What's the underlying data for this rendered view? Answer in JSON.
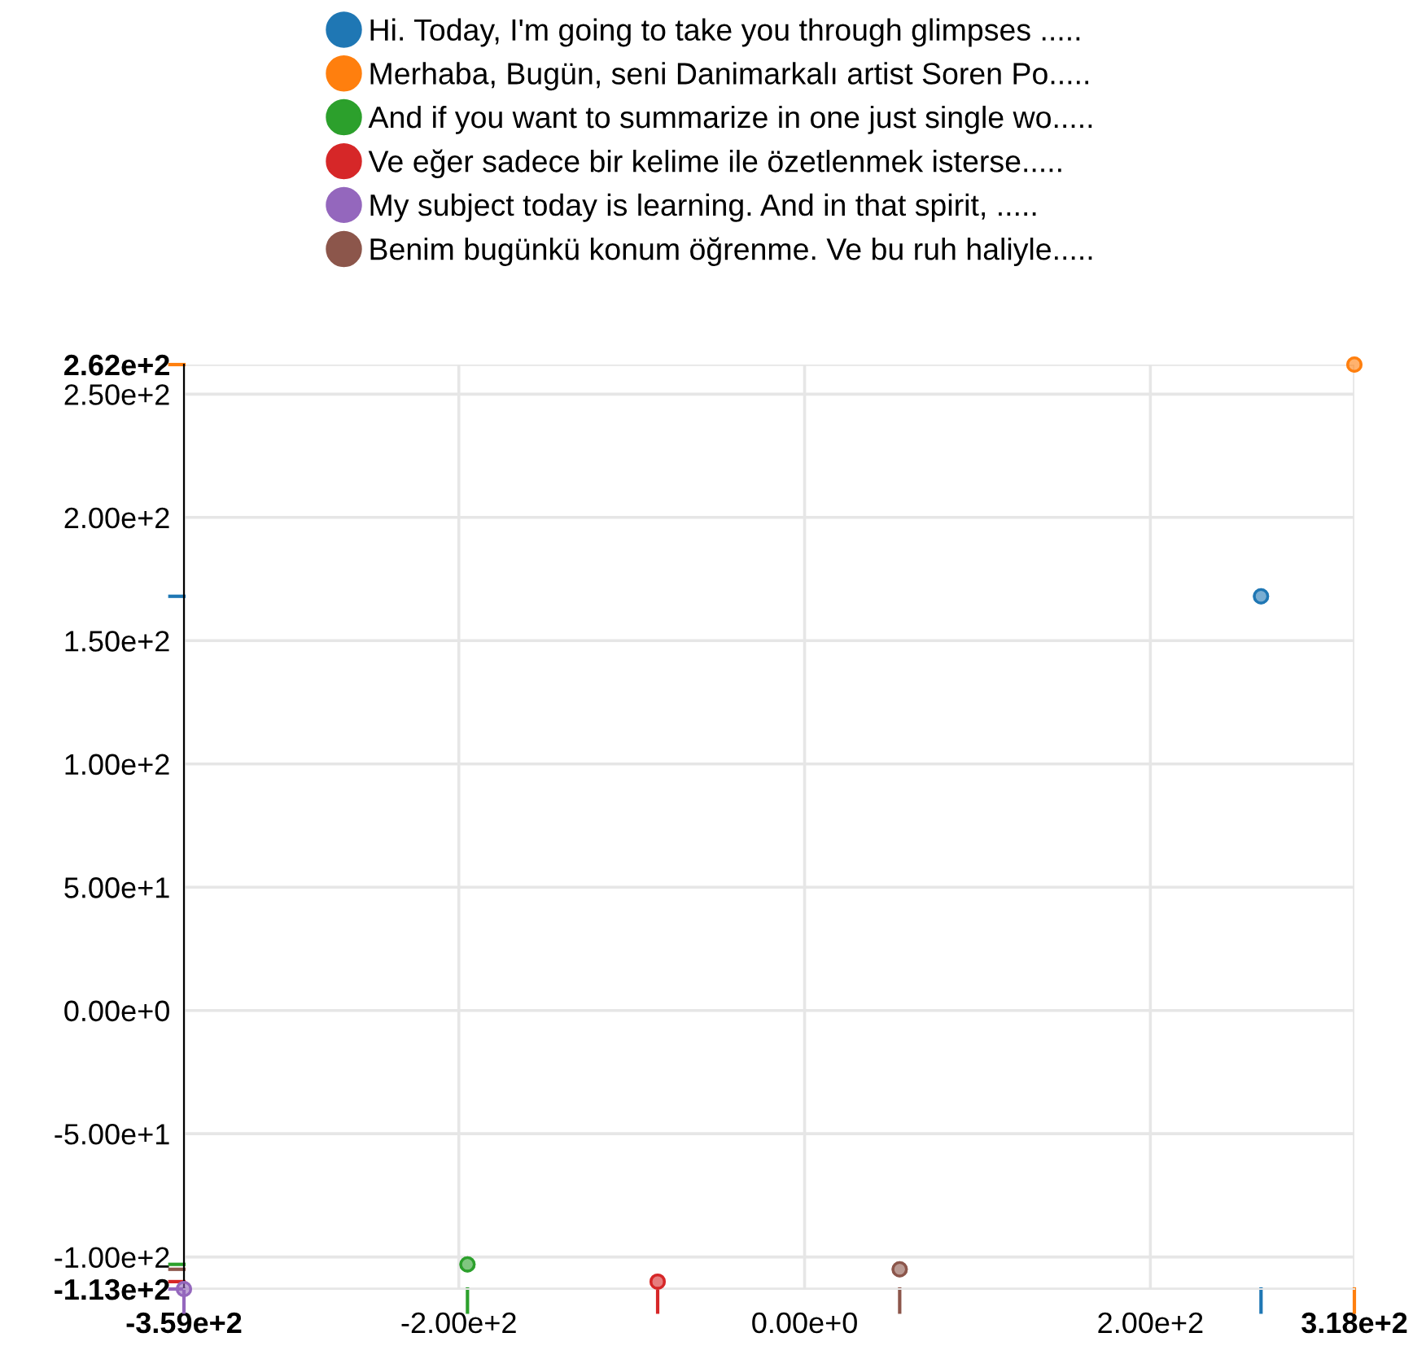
{
  "chart_data": {
    "type": "scatter",
    "marker": "circle",
    "grid": true,
    "legend": "top",
    "xlim": [
      -359,
      318
    ],
    "ylim": [
      -113,
      262
    ],
    "xticks": [
      {
        "value": -359,
        "label": "-3.59e+2"
      },
      {
        "value": -200,
        "label": "-2.00e+2"
      },
      {
        "value": 0,
        "label": "0.00e+0"
      },
      {
        "value": 200,
        "label": "2.00e+2"
      },
      {
        "value": 318,
        "label": "3.18e+2"
      }
    ],
    "yticks": [
      {
        "value": -113,
        "label": "-1.13e+2"
      },
      {
        "value": -100,
        "label": "-1.00e+2"
      },
      {
        "value": -50,
        "label": "-5.00e+1"
      },
      {
        "value": 0,
        "label": "0.00e+0"
      },
      {
        "value": 50,
        "label": "5.00e+1"
      },
      {
        "value": 100,
        "label": "1.00e+2"
      },
      {
        "value": 150,
        "label": "1.50e+2"
      },
      {
        "value": 200,
        "label": "2.00e+2"
      },
      {
        "value": 250,
        "label": "2.50e+2"
      },
      {
        "value": 262,
        "label": "2.62e+2"
      }
    ],
    "series": [
      {
        "name": "Hi. Today, I'm going to take you through glimpses .....",
        "color": "#1f77b4",
        "x": [
          264
        ],
        "values": [
          168
        ]
      },
      {
        "name": "Merhaba, Bugün, seni Danimarkalı artist Soren Po.....",
        "color": "#ff7f0e",
        "x": [
          318
        ],
        "values": [
          262
        ]
      },
      {
        "name": "And if you want to summarize in one just single wo.....",
        "color": "#2ca02c",
        "x": [
          -195
        ],
        "values": [
          -103
        ]
      },
      {
        "name": "Ve eğer sadece bir kelime ile özetlenmek isterse.....",
        "color": "#d62728",
        "x": [
          -85
        ],
        "values": [
          -110
        ]
      },
      {
        "name": "My subject today is learning. And in that spirit, .....",
        "color": "#9467bd",
        "x": [
          -359
        ],
        "values": [
          -113
        ]
      },
      {
        "name": "Benim bugünkü konum öğrenme. Ve bu ruh haliyle.....",
        "color": "#8c564b",
        "x": [
          55
        ],
        "values": [
          -105
        ]
      }
    ]
  }
}
